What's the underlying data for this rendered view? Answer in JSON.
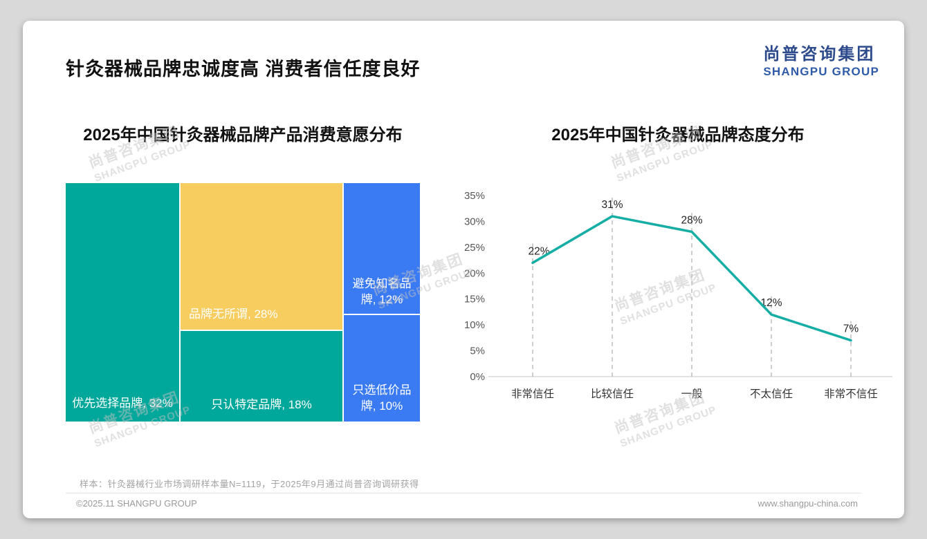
{
  "page": {
    "main_title": "针灸器械品牌忠诚度高 消费者信任度良好",
    "logo": {
      "cn": "尚普咨询集团",
      "en": "SHANGPU GROUP"
    },
    "watermark": {
      "cn": "尚普咨询集团",
      "en": "SHANGPU GROUP"
    },
    "footer": {
      "note": "样本：针灸器械行业市场调研样本量N=1119，于2025年9月通过尚普咨询调研获得",
      "copyright": "©2025.11 SHANGPU GROUP",
      "website": "www.shangpu-china.com"
    }
  },
  "chart_data": [
    {
      "type": "treemap",
      "title": "2025年中国针灸器械品牌产品消费意愿分布",
      "blocks": [
        {
          "label": "优先选择品牌",
          "value_pct": 32,
          "display": "优先选择品牌, 32%",
          "color": "#00a79b"
        },
        {
          "label": "品牌无所谓",
          "value_pct": 28,
          "display": "品牌无所谓, 28%",
          "color": "#f8cd60"
        },
        {
          "label": "只认特定品牌",
          "value_pct": 18,
          "display": "只认特定品牌, 18%",
          "color": "#00a79b"
        },
        {
          "label": "避免知名品牌",
          "value_pct": 12,
          "display": "避免知名品牌, 12%",
          "color": "#3a7af2"
        },
        {
          "label": "只选低价品牌",
          "value_pct": 10,
          "display": "只选低价品牌, 10%",
          "color": "#3a7af2"
        }
      ]
    },
    {
      "type": "line",
      "title": "2025年中国针灸器械品牌态度分布",
      "categories": [
        "非常信任",
        "比较信任",
        "一般",
        "不太信任",
        "非常不信任"
      ],
      "values": [
        22,
        31,
        28,
        12,
        7
      ],
      "unit": "%",
      "ylim": [
        0,
        35
      ],
      "ytick_step": 5,
      "line_color": "#16ada4",
      "grid": "dashed-vertical-leaders",
      "legend": "none"
    }
  ]
}
